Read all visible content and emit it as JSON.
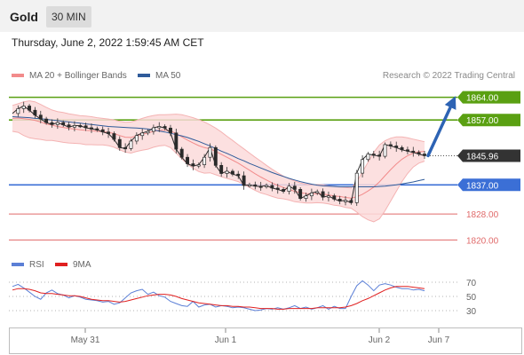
{
  "header": {
    "instrument": "Gold",
    "timeframe": "30 MIN"
  },
  "datetime": "Thursday, June 2, 2022 1:59:45 AM CET",
  "legend": [
    {
      "label": "MA 20 + Bollinger Bands",
      "color": "#f28b8b"
    },
    {
      "label": "MA 50",
      "color": "#2f5b9a"
    }
  ],
  "credit": "Research © 2022 Trading Central",
  "rsi_legend": [
    {
      "label": "RSI",
      "color": "#5b7fd6"
    },
    {
      "label": "9MA",
      "color": "#e02020"
    }
  ],
  "colors": {
    "resistance": "#5aa012",
    "pivot": "#3b6fd6",
    "support": "#e06a6a",
    "current": "#333333",
    "arrow": "#2d63b4"
  },
  "chart_data": [
    {
      "type": "line",
      "title": "",
      "x_ticks": [
        "May 31",
        "Jun 1",
        "Jun 2",
        "Jun 7"
      ],
      "y_range": [
        1816,
        1868
      ],
      "current_price": 1845.96,
      "current_label": "1845.96",
      "levels": [
        {
          "label": "1864.00",
          "value": 1864.0,
          "type": "resistance"
        },
        {
          "label": "1857.00",
          "value": 1857.0,
          "type": "resistance"
        },
        {
          "label": "1837.00",
          "value": 1837.0,
          "type": "pivot"
        },
        {
          "label": "1828.00",
          "value": 1828.0,
          "type": "support"
        },
        {
          "label": "1820.00",
          "value": 1820.0,
          "type": "support"
        }
      ],
      "series": [
        {
          "name": "MA 20 + Bollinger Bands",
          "values": [
            1857.5,
            1857.6,
            1857.4,
            1857.2,
            1856.9,
            1856.4,
            1855.8,
            1855.4,
            1855.0,
            1854.7,
            1854.4,
            1854.2,
            1854.0,
            1853.8,
            1853.7,
            1853.5,
            1853.4,
            1853.2,
            1852.8,
            1852.2,
            1851.7,
            1851.6,
            1852.1,
            1852.6,
            1853.0,
            1853.5,
            1853.8,
            1853.9,
            1853.6,
            1852.8,
            1851.8,
            1850.8,
            1849.9,
            1849.1,
            1848.5,
            1848.1,
            1847.3,
            1846.4,
            1845.5,
            1844.6,
            1843.7,
            1842.6,
            1841.5,
            1840.4,
            1839.4,
            1838.5,
            1837.6,
            1836.8,
            1836.2,
            1835.6,
            1835.0,
            1834.6,
            1834.3,
            1834.2,
            1834.3,
            1834.2,
            1833.9,
            1833.6,
            1833.4,
            1833.1,
            1832.9,
            1833.3,
            1834.1,
            1835.1,
            1836.3,
            1837.9,
            1839.8,
            1841.7,
            1843.4,
            1844.9,
            1846.0,
            1846.8,
            1847.2,
            1847.3
          ]
        },
        {
          "name": "MA 50",
          "values": [
            1858.0,
            1857.9,
            1857.8,
            1857.7,
            1857.5,
            1857.4,
            1857.2,
            1857.0,
            1856.8,
            1856.6,
            1856.4,
            1856.2,
            1856.0,
            1855.8,
            1855.6,
            1855.4,
            1855.2,
            1855.0,
            1854.9,
            1854.8,
            1854.7,
            1854.6,
            1854.5,
            1854.4,
            1854.2,
            1853.9,
            1853.6,
            1853.3,
            1852.9,
            1852.5,
            1852.1,
            1851.6,
            1851.0,
            1850.4,
            1849.7,
            1849.0,
            1848.2,
            1847.4,
            1846.7,
            1845.9,
            1845.1,
            1844.4,
            1843.6,
            1842.9,
            1842.2,
            1841.5,
            1840.8,
            1840.2,
            1839.6,
            1839.0,
            1838.5,
            1838.0,
            1837.6,
            1837.2,
            1836.9,
            1836.7,
            1836.6,
            1836.5,
            1836.4,
            1836.4,
            1836.4,
            1836.4,
            1836.4,
            1836.4,
            1836.4,
            1836.5,
            1836.6,
            1836.8,
            1837.0,
            1837.3,
            1837.6,
            1837.9,
            1838.3,
            1838.7
          ]
        },
        {
          "name": "Upper Band",
          "values": [
            1861.5,
            1862.0,
            1862.6,
            1862.9,
            1862.6,
            1861.8,
            1860.9,
            1860.1,
            1859.6,
            1859.3,
            1858.9,
            1858.6,
            1858.3,
            1858.2,
            1858.0,
            1857.7,
            1857.5,
            1857.3,
            1857.0,
            1856.6,
            1856.3,
            1856.4,
            1856.9,
            1857.5,
            1858.0,
            1858.4,
            1858.6,
            1858.6,
            1858.7,
            1858.8,
            1858.6,
            1858.2,
            1857.7,
            1857.1,
            1856.4,
            1855.5,
            1854.5,
            1853.3,
            1852.0,
            1850.7,
            1849.4,
            1848.1,
            1846.8,
            1845.5,
            1844.3,
            1843.0,
            1841.8,
            1840.7,
            1839.7,
            1838.9,
            1838.2,
            1837.6,
            1837.2,
            1837.0,
            1837.1,
            1837.0,
            1836.7,
            1836.5,
            1836.3,
            1836.2,
            1836.0,
            1838.0,
            1841.0,
            1844.0,
            1847.0,
            1849.3,
            1850.6,
            1851.4,
            1851.8,
            1851.8,
            1851.5,
            1851.1,
            1850.7,
            1850.3
          ]
        },
        {
          "name": "Lower Band",
          "values": [
            1853.5,
            1853.2,
            1852.2,
            1851.5,
            1851.2,
            1851.0,
            1850.7,
            1850.7,
            1850.4,
            1850.1,
            1849.9,
            1849.8,
            1849.7,
            1849.4,
            1849.4,
            1849.3,
            1849.3,
            1849.1,
            1848.6,
            1847.8,
            1847.1,
            1846.8,
            1847.3,
            1847.7,
            1848.0,
            1848.6,
            1849.0,
            1849.2,
            1848.5,
            1846.8,
            1845.0,
            1843.4,
            1842.1,
            1841.1,
            1840.6,
            1840.7,
            1840.1,
            1839.5,
            1839.0,
            1838.5,
            1838.0,
            1837.1,
            1836.2,
            1835.3,
            1834.5,
            1834.0,
            1833.4,
            1832.9,
            1832.7,
            1832.3,
            1831.8,
            1831.6,
            1831.4,
            1831.4,
            1831.5,
            1831.4,
            1831.1,
            1830.7,
            1830.5,
            1830.0,
            1829.8,
            1828.6,
            1827.2,
            1826.2,
            1825.6,
            1826.5,
            1829.0,
            1832.0,
            1835.0,
            1838.0,
            1840.5,
            1842.5,
            1843.7,
            1844.3
          ]
        },
        {
          "name": "Price",
          "values": [
            1859.0,
            1860.5,
            1861.3,
            1860.0,
            1858.5,
            1857.3,
            1856.2,
            1855.6,
            1856.2,
            1855.5,
            1854.8,
            1855.3,
            1855.2,
            1854.6,
            1854.3,
            1854.0,
            1853.3,
            1852.8,
            1851.0,
            1848.5,
            1848.2,
            1850.5,
            1852.2,
            1853.0,
            1853.5,
            1854.6,
            1855.0,
            1854.5,
            1853.0,
            1848.0,
            1845.5,
            1843.5,
            1842.8,
            1843.2,
            1845.5,
            1848.5,
            1843.0,
            1840.5,
            1841.2,
            1840.3,
            1839.8,
            1836.8,
            1837.0,
            1836.6,
            1836.5,
            1836.8,
            1836.0,
            1835.6,
            1835.0,
            1836.6,
            1835.6,
            1832.8,
            1833.6,
            1834.5,
            1834.9,
            1833.2,
            1833.6,
            1832.6,
            1832.0,
            1832.2,
            1831.5,
            1840.6,
            1844.8,
            1846.5,
            1846.2,
            1845.8,
            1849.4,
            1849.0,
            1848.5,
            1847.8,
            1847.4,
            1847.0,
            1846.5,
            1846.0
          ]
        }
      ],
      "forecast_arrow": {
        "from": 1846.0,
        "to": 1864.0
      }
    },
    {
      "type": "line",
      "title": "",
      "y_ticks": [
        70,
        50,
        30
      ],
      "y_range": [
        10,
        80
      ],
      "series": [
        {
          "name": "RSI",
          "values": [
            64,
            67,
            62,
            56,
            50,
            46,
            55,
            59,
            54,
            52,
            48,
            51,
            49,
            46,
            45,
            44,
            42,
            43,
            39,
            41,
            48,
            55,
            58,
            60,
            53,
            56,
            51,
            49,
            43,
            40,
            37,
            36,
            43,
            35,
            38,
            39,
            35,
            37,
            36,
            34,
            35,
            34,
            32,
            30,
            31,
            33,
            32,
            34,
            32,
            34,
            37,
            33,
            35,
            32,
            34,
            37,
            32,
            36,
            33,
            33,
            50,
            65,
            72,
            66,
            58,
            66,
            68,
            66,
            63,
            61,
            61,
            59,
            60,
            58
          ]
        },
        {
          "name": "9MA",
          "values": [
            59,
            61,
            61,
            60,
            58,
            55,
            54,
            54,
            53,
            52,
            51,
            51,
            50,
            48,
            46,
            45,
            44,
            44,
            43,
            42,
            43,
            45,
            47,
            49,
            51,
            52,
            53,
            53,
            52,
            50,
            47,
            45,
            43,
            41,
            40,
            39,
            38,
            37,
            37,
            36,
            36,
            35,
            35,
            34,
            33,
            33,
            33,
            32,
            32,
            33,
            33,
            33,
            33,
            33,
            34,
            34,
            34,
            34,
            34,
            35,
            37,
            40,
            44,
            47,
            51,
            55,
            59,
            62,
            64,
            64,
            64,
            63,
            62,
            61
          ]
        }
      ]
    }
  ]
}
